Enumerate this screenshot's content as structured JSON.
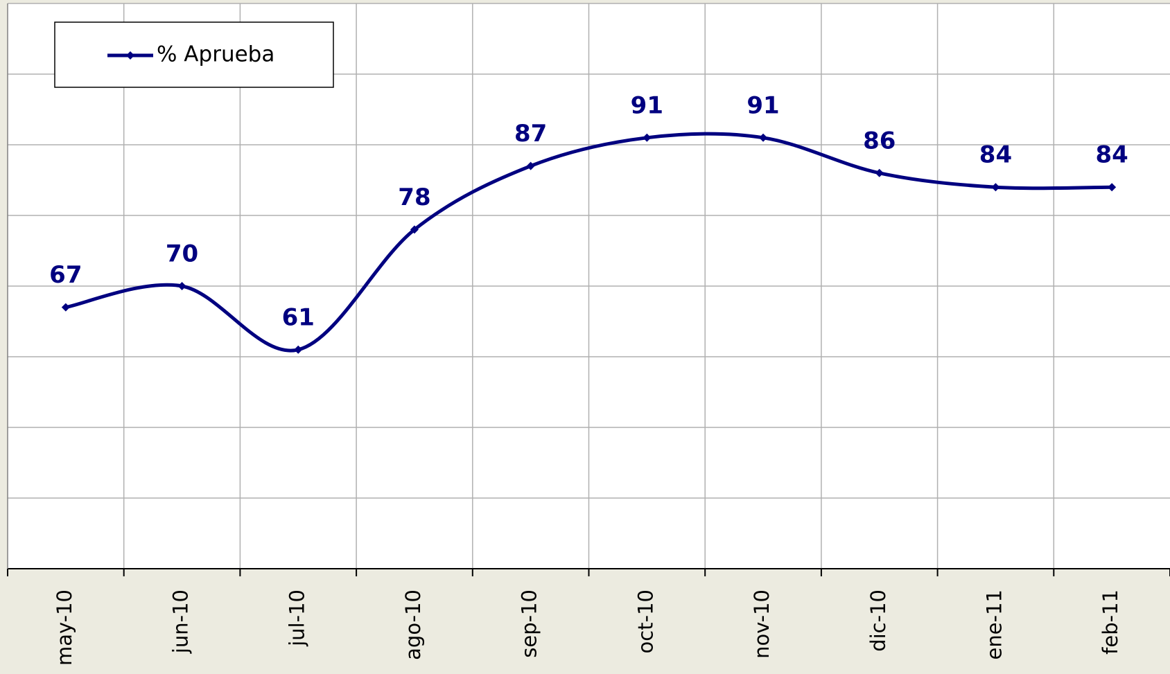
{
  "chart_data": {
    "type": "line",
    "categories": [
      "may-10",
      "jun-10",
      "jul-10",
      "ago-10",
      "sep-10",
      "oct-10",
      "nov-10",
      "dic-10",
      "ene-11",
      "feb-11"
    ],
    "series": [
      {
        "name": "% Aprueba",
        "color": "#000080",
        "values": [
          67,
          70,
          61,
          78,
          87,
          91,
          91,
          86,
          84,
          84
        ]
      }
    ],
    "ylim": [
      30,
      110
    ],
    "yticks": [
      30,
      40,
      50,
      60,
      70,
      80,
      90,
      100,
      110
    ],
    "grid": true,
    "smooth": true,
    "legend": "top-left"
  }
}
